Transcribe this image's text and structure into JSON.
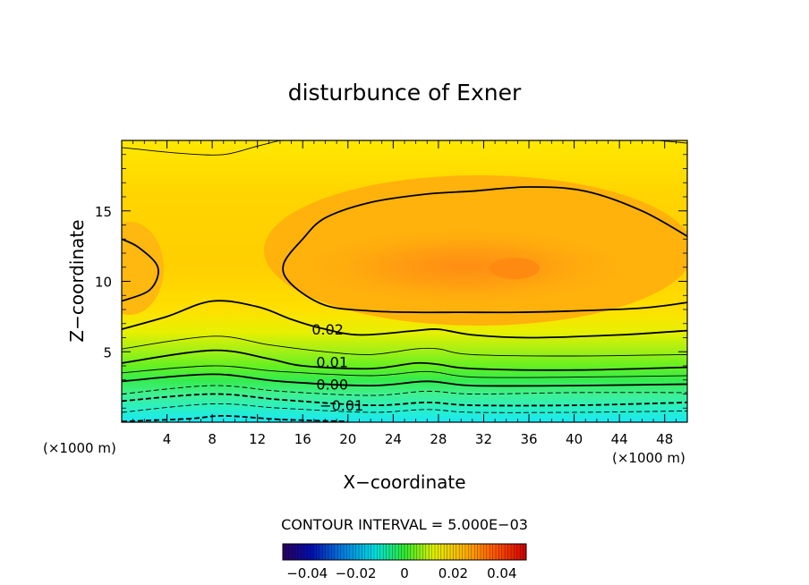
{
  "chart_data": {
    "type": "contour",
    "title": "disturbunce of Exner",
    "xlabel": "X−coordinate",
    "ylabel": "Z−coordinate",
    "x_unit_left": "(×1000 m)",
    "x_unit_right": "(×1000 m)",
    "xlim": [
      0,
      50
    ],
    "ylim": [
      0,
      20
    ],
    "x_ticks": [
      4,
      8,
      12,
      16,
      20,
      24,
      28,
      32,
      36,
      40,
      44,
      48
    ],
    "y_ticks": [
      5,
      10,
      15
    ],
    "contour_interval_text": "CONTOUR INTERVAL = 5.000E−03",
    "contour_interval": 0.005,
    "colorbar": {
      "range": [
        -0.05,
        0.05
      ],
      "tick_values": [
        -0.04,
        -0.02,
        0,
        0.02,
        0.04
      ],
      "tick_labels": [
        "−0.04",
        "−0.02",
        "0",
        "0.02",
        "0.04"
      ]
    },
    "contour_labels": [
      {
        "value": 0.02,
        "text": "0.02",
        "x": 16.8,
        "y": 6.6
      },
      {
        "value": 0.01,
        "text": "0.01",
        "x": 17.2,
        "y": 4.3
      },
      {
        "value": 0.0,
        "text": "0.00",
        "x": 17.2,
        "y": 2.7
      },
      {
        "value": -0.01,
        "text": "−0.01",
        "x": 17.5,
        "y": 1.2
      }
    ],
    "contour_lines": [
      {
        "level": 0.025,
        "points": [
          [
            0,
            19.5
          ],
          [
            5,
            19.1
          ],
          [
            9,
            19.0
          ],
          [
            12,
            19.6
          ],
          [
            14,
            20
          ]
        ]
      },
      {
        "level": 0.025,
        "points": [
          [
            47.5,
            20
          ],
          [
            50,
            19.8
          ]
        ]
      },
      {
        "level": 0.03,
        "points": [
          [
            0,
            13.0
          ],
          [
            1.5,
            12.4
          ],
          [
            3.2,
            11.0
          ],
          [
            2.5,
            9.4
          ],
          [
            0,
            8.6
          ]
        ]
      },
      {
        "level": 0.03,
        "points": [
          [
            50,
            13.2
          ],
          [
            46,
            15.0
          ],
          [
            41,
            16.4
          ],
          [
            36,
            16.7
          ],
          [
            31,
            16.4
          ],
          [
            27,
            16.2
          ],
          [
            22,
            15.6
          ],
          [
            18,
            14.5
          ],
          [
            16,
            13.0
          ],
          [
            14.3,
            11.2
          ],
          [
            15,
            9.8
          ],
          [
            18,
            8.3
          ],
          [
            22,
            7.9
          ],
          [
            26,
            7.8
          ],
          [
            30,
            7.8
          ],
          [
            35,
            7.8
          ],
          [
            40,
            7.9
          ],
          [
            46,
            8.1
          ],
          [
            50,
            8.5
          ]
        ]
      },
      {
        "level": 0.02,
        "points": [
          [
            0,
            6.6
          ],
          [
            4,
            7.5
          ],
          [
            8,
            8.6
          ],
          [
            12,
            8.2
          ],
          [
            15,
            7.3
          ],
          [
            17.5,
            6.7
          ],
          [
            21,
            6.2
          ],
          [
            26,
            6.5
          ],
          [
            28,
            6.6
          ],
          [
            31,
            6.2
          ],
          [
            36,
            6.0
          ],
          [
            44,
            6.2
          ],
          [
            50,
            6.5
          ]
        ]
      },
      {
        "level": 0.015,
        "points": [
          [
            0,
            5.2
          ],
          [
            8,
            6.1
          ],
          [
            13,
            5.5
          ],
          [
            18,
            5.0
          ],
          [
            22,
            4.8
          ],
          [
            26,
            5.2
          ],
          [
            28,
            5.2
          ],
          [
            31,
            4.8
          ],
          [
            40,
            4.7
          ],
          [
            50,
            4.8
          ]
        ]
      },
      {
        "level": 0.01,
        "points": [
          [
            0,
            4.2
          ],
          [
            8,
            5.1
          ],
          [
            13,
            4.5
          ],
          [
            16,
            4.0
          ],
          [
            22,
            3.8
          ],
          [
            26,
            4.2
          ],
          [
            28,
            4.1
          ],
          [
            31,
            3.8
          ],
          [
            40,
            3.7
          ],
          [
            50,
            3.9
          ]
        ]
      },
      {
        "level": 0.005,
        "points": [
          [
            0,
            3.5
          ],
          [
            8,
            4.0
          ],
          [
            14,
            3.6
          ],
          [
            22,
            3.3
          ],
          [
            27,
            3.6
          ],
          [
            31,
            3.2
          ],
          [
            40,
            3.2
          ],
          [
            50,
            3.3
          ]
        ]
      },
      {
        "level": 0.0,
        "points": [
          [
            0,
            2.9
          ],
          [
            8,
            3.4
          ],
          [
            14,
            2.9
          ],
          [
            22,
            2.6
          ],
          [
            27,
            2.9
          ],
          [
            31,
            2.6
          ],
          [
            40,
            2.6
          ],
          [
            50,
            2.7
          ]
        ]
      },
      {
        "level": -0.005,
        "points": [
          [
            0,
            2.0
          ],
          [
            8,
            2.6
          ],
          [
            14,
            2.2
          ],
          [
            22,
            1.9
          ],
          [
            27,
            2.2
          ],
          [
            31,
            2.0
          ],
          [
            40,
            2.1
          ],
          [
            50,
            2.1
          ]
        ]
      },
      {
        "level": -0.01,
        "points": [
          [
            0,
            1.5
          ],
          [
            8,
            2.0
          ],
          [
            14,
            1.6
          ],
          [
            22,
            1.2
          ],
          [
            27,
            1.4
          ],
          [
            31,
            1.2
          ],
          [
            40,
            1.2
          ],
          [
            50,
            1.4
          ]
        ]
      },
      {
        "level": -0.015,
        "points": [
          [
            0,
            0.7
          ],
          [
            8,
            1.3
          ],
          [
            14,
            1.0
          ],
          [
            22,
            0.7
          ],
          [
            27,
            0.9
          ],
          [
            31,
            0.7
          ],
          [
            40,
            0.7
          ],
          [
            50,
            0.8
          ]
        ]
      },
      {
        "level": -0.02,
        "points": [
          [
            0,
            0.05
          ],
          [
            6,
            0.25
          ],
          [
            9,
            0.45
          ],
          [
            14,
            0.2
          ],
          [
            20,
            0.05
          ]
        ]
      }
    ]
  }
}
